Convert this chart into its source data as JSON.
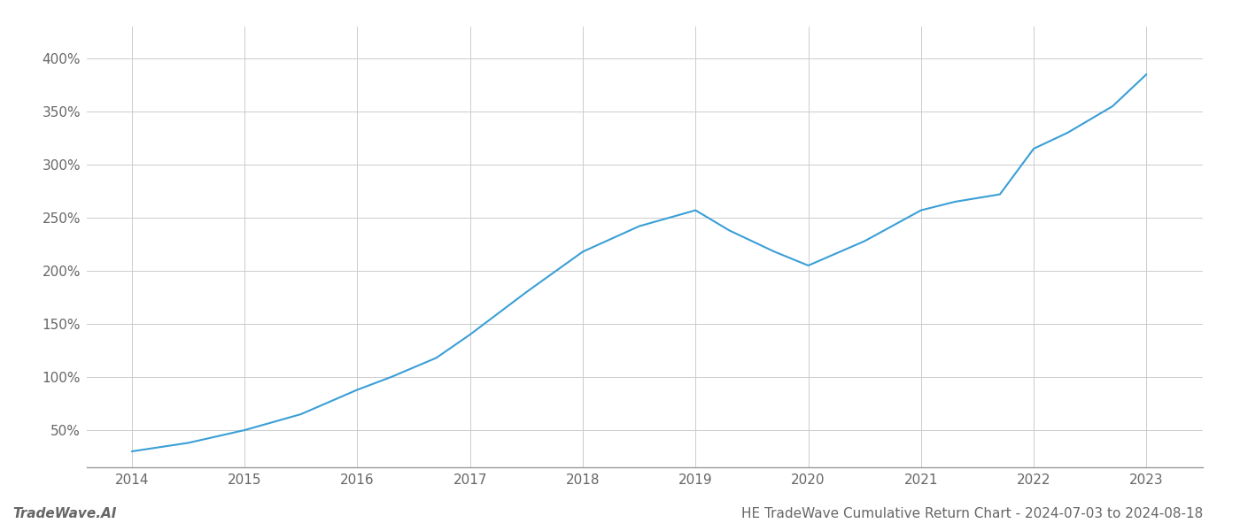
{
  "x_values": [
    2014,
    2014.5,
    2015,
    2015.5,
    2016,
    2016.3,
    2016.7,
    2017,
    2017.5,
    2018,
    2018.5,
    2019,
    2019.3,
    2019.7,
    2020,
    2020.5,
    2021,
    2021.3,
    2021.7,
    2022,
    2022.3,
    2022.7,
    2023
  ],
  "y_values": [
    30,
    38,
    50,
    65,
    88,
    100,
    118,
    140,
    180,
    218,
    242,
    257,
    238,
    218,
    205,
    228,
    257,
    265,
    272,
    315,
    330,
    355,
    385
  ],
  "line_color": "#3a9fd6",
  "line_width": 1.5,
  "background_color": "#ffffff",
  "grid_color": "#cccccc",
  "title": "HE TradeWave Cumulative Return Chart - 2024-07-03 to 2024-08-18",
  "watermark": "TradeWave.AI",
  "xlabel": "",
  "ylabel": "",
  "xlim": [
    2013.6,
    2023.5
  ],
  "ylim": [
    15,
    430
  ],
  "yticks": [
    50,
    100,
    150,
    200,
    250,
    300,
    350,
    400
  ],
  "xticks": [
    2014,
    2015,
    2016,
    2017,
    2018,
    2019,
    2020,
    2021,
    2022,
    2023
  ],
  "tick_label_color": "#666666",
  "title_fontsize": 11,
  "watermark_fontsize": 11,
  "spine_color": "#999999",
  "tick_fontsize": 11
}
